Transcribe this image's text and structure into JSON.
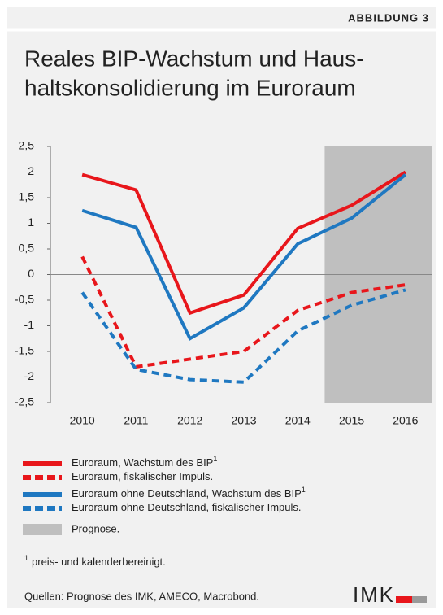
{
  "header": "ABBILDUNG 3",
  "chart_data": {
    "type": "line",
    "title": [
      "Reales BIP-Wachstum und Haus-",
      "haltskonsolidierung im Euroraum"
    ],
    "categories": [
      "2010",
      "2011",
      "2012",
      "2013",
      "2014",
      "2015",
      "2016"
    ],
    "series": [
      {
        "name": "Euroraum, Wachstum des BIP",
        "note": "1",
        "color": "#e8161b",
        "dashed": false,
        "values": [
          1.95,
          1.65,
          -0.75,
          -0.4,
          0.9,
          1.35,
          2.0
        ]
      },
      {
        "name": "Euroraum, fiskalischer Impuls.",
        "color": "#e8161b",
        "dashed": true,
        "values": [
          0.35,
          -1.8,
          -1.65,
          -1.5,
          -0.7,
          -0.35,
          -0.2
        ]
      },
      {
        "name": "Euroraum ohne Deutschland, Wachstum des BIP",
        "note": "1",
        "color": "#1f78c1",
        "dashed": false,
        "values": [
          1.25,
          0.92,
          -1.25,
          -0.65,
          0.6,
          1.1,
          1.95
        ]
      },
      {
        "name": "Euroraum ohne Deutschland, fiskalischer Impuls.",
        "color": "#1f78c1",
        "dashed": true,
        "values": [
          -0.35,
          -1.85,
          -2.05,
          -2.1,
          -1.1,
          -0.6,
          -0.3
        ]
      }
    ],
    "forecast": {
      "label": "Prognose.",
      "from": "2015",
      "color": "#bfbfbf"
    },
    "ylim": [
      -2.5,
      2.5
    ],
    "yticks": [
      {
        "value": -2.5,
        "label": "-2,5"
      },
      -2,
      {
        "value": -1.5,
        "label": "-1,5"
      },
      -1,
      {
        "value": -0.5,
        "label": "-0,5"
      },
      0,
      {
        "value": 0.5,
        "label": "0,5"
      },
      1,
      {
        "value": 1.5,
        "label": "1,5"
      },
      2,
      {
        "value": 2.5,
        "label": "2,5"
      }
    ]
  },
  "footnote": {
    "marker": "1",
    "text": "preis- und kalenderbereinigt."
  },
  "source": "Quellen: Prognose des IMK, AMECO, Macrobond.",
  "logo": "IMK"
}
